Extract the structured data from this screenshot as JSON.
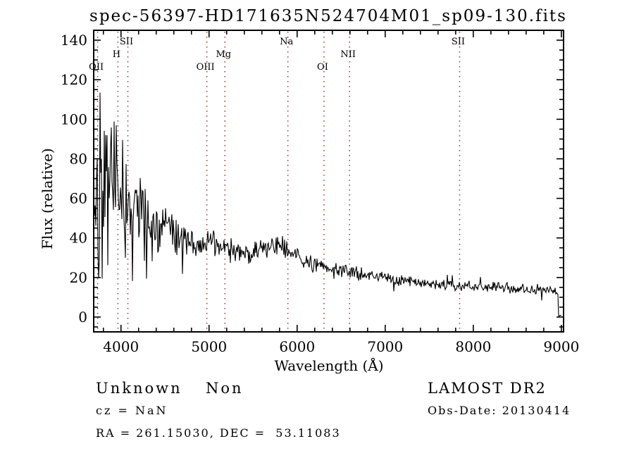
{
  "window": {
    "background": "#ffffff"
  },
  "chart_data": {
    "type": "line",
    "title": "spec-56397-HD171635N524704M01_sp09-130.fits",
    "xlabel": "Wavelength (Å)",
    "ylabel": "Flux (relative)",
    "xlim": [
      3690,
      9025
    ],
    "ylim": [
      -7.5,
      145
    ],
    "x_ticks": [
      4000,
      5000,
      6000,
      7000,
      8000,
      9000
    ],
    "x_minor_step": 200,
    "y_ticks": [
      0,
      20,
      40,
      60,
      80,
      100,
      120,
      140
    ],
    "y_minor_step": 5,
    "grid": false,
    "legend": "none",
    "line_color": "#000000",
    "marker_line_color": "#993333",
    "line_markers": [
      {
        "label": "OII",
        "wavelength": 3735,
        "row": 2
      },
      {
        "label": "H",
        "wavelength": 3965,
        "row": 1
      },
      {
        "label": "SII",
        "wavelength": 4078,
        "row": 0
      },
      {
        "label": "OIII",
        "wavelength": 4975,
        "row": 2
      },
      {
        "label": "Mg",
        "wavelength": 5180,
        "row": 1
      },
      {
        "label": "Na",
        "wavelength": 5895,
        "row": 0
      },
      {
        "label": "OI",
        "wavelength": 6305,
        "row": 2
      },
      {
        "label": "NII",
        "wavelength": 6595,
        "row": 1
      },
      {
        "label": "SII",
        "wavelength": 7845,
        "row": 0
      }
    ],
    "series": [
      {
        "name": "spectrum",
        "sampling": "continuum_with_noise_envelope",
        "noise_seed": 42,
        "anchors_wavelength_flux_noiseamp": [
          [
            3690,
            60,
            68
          ],
          [
            3730,
            68,
            66
          ],
          [
            3770,
            72,
            60
          ],
          [
            3820,
            74,
            55
          ],
          [
            3870,
            70,
            50
          ],
          [
            3920,
            66,
            48
          ],
          [
            3960,
            64,
            46
          ],
          [
            4000,
            60,
            40
          ],
          [
            4060,
            57,
            36
          ],
          [
            4120,
            55,
            30
          ],
          [
            4200,
            52,
            26
          ],
          [
            4300,
            48,
            22
          ],
          [
            4400,
            46,
            18
          ],
          [
            4500,
            44,
            15
          ],
          [
            4600,
            42,
            12
          ],
          [
            4700,
            40,
            10
          ],
          [
            4800,
            38,
            9
          ],
          [
            4900,
            37,
            8
          ],
          [
            5000,
            37,
            8
          ],
          [
            5100,
            36,
            7
          ],
          [
            5200,
            35,
            7
          ],
          [
            5300,
            33,
            7
          ],
          [
            5400,
            32,
            6
          ],
          [
            5500,
            33,
            6
          ],
          [
            5650,
            35,
            6
          ],
          [
            5800,
            36,
            6
          ],
          [
            5900,
            33,
            5
          ],
          [
            6000,
            30,
            5
          ],
          [
            6100,
            28,
            5
          ],
          [
            6250,
            26,
            5
          ],
          [
            6400,
            24,
            4.5
          ],
          [
            6550,
            23,
            4
          ],
          [
            6700,
            22,
            4
          ],
          [
            6900,
            21,
            3.5
          ],
          [
            7100,
            19,
            3.5
          ],
          [
            7300,
            18,
            3
          ],
          [
            7500,
            17,
            3
          ],
          [
            7700,
            16,
            3
          ],
          [
            7900,
            15.5,
            3
          ],
          [
            8100,
            15,
            3
          ],
          [
            8300,
            15,
            3
          ],
          [
            8500,
            14.5,
            3
          ],
          [
            8700,
            14,
            3
          ],
          [
            8900,
            14,
            2.5
          ],
          [
            8960,
            12,
            2
          ],
          [
            8968,
            0.6,
            0.4
          ],
          [
            9020,
            0.8,
            0.4
          ]
        ]
      }
    ]
  },
  "footer": {
    "class_label": "Unknown",
    "subclass_label": "Non",
    "cz_text": "cz = NaN",
    "ra_dec_text": "RA = 261.15030, DEC =  53.11083",
    "survey_label": "LAMOST DR2",
    "obs_date_text": "Obs-Date: 20130414"
  }
}
